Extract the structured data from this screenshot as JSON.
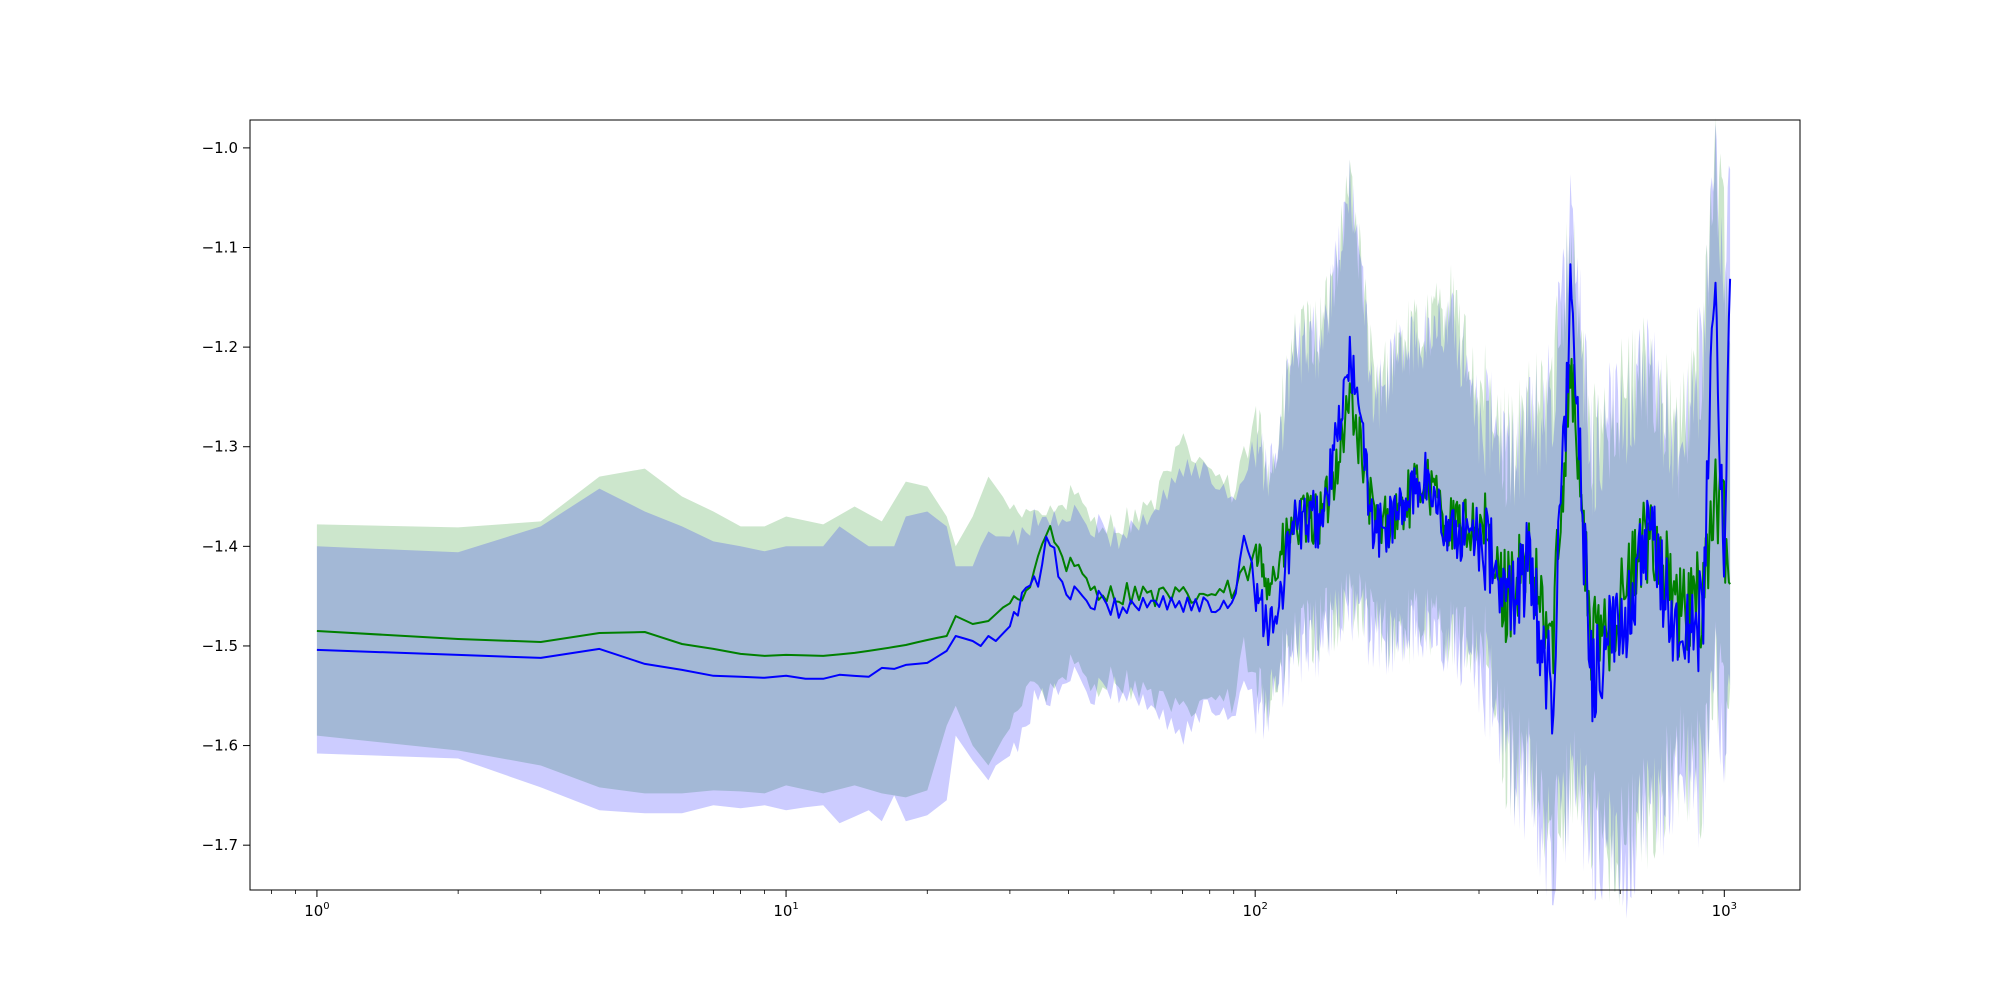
{
  "chart_data": {
    "type": "line",
    "title": "",
    "xlabel": "",
    "ylabel": "",
    "xscale": "log",
    "xlim": [
      0.72,
      1450
    ],
    "ylim": [
      -1.745,
      -0.972
    ],
    "grid": false,
    "legend": "none",
    "x_ticks": [
      {
        "base": "10",
        "exp": "0",
        "value": 1
      },
      {
        "base": "10",
        "exp": "1",
        "value": 10
      },
      {
        "base": "10",
        "exp": "2",
        "value": 100
      },
      {
        "base": "10",
        "exp": "3",
        "value": 1000
      }
    ],
    "y_ticks": [
      {
        "label": "−1.0",
        "value": -1.0
      },
      {
        "label": "−1.1",
        "value": -1.1
      },
      {
        "label": "−1.2",
        "value": -1.2
      },
      {
        "label": "−1.3",
        "value": -1.3
      },
      {
        "label": "−1.4",
        "value": -1.4
      },
      {
        "label": "−1.5",
        "value": -1.5
      },
      {
        "label": "−1.6",
        "value": -1.6
      },
      {
        "label": "−1.7",
        "value": -1.7
      }
    ],
    "series": [
      {
        "color": "#008000",
        "band_color": "#008000",
        "band_opacity": 0.2,
        "x": [
          1,
          2,
          3,
          4,
          5,
          6,
          7,
          8,
          9,
          10,
          12,
          14,
          16,
          18,
          20,
          22,
          23,
          25,
          27,
          30,
          33,
          36,
          40,
          45,
          50,
          55,
          60,
          70,
          80,
          90,
          95,
          100,
          110,
          120,
          140,
          160,
          180,
          200,
          230,
          260,
          300,
          340,
          380,
          430,
          470,
          520,
          600,
          700,
          800,
          900,
          950,
          1000,
          1030
        ],
        "y": [
          -1.485,
          -1.493,
          -1.496,
          -1.487,
          -1.486,
          -1.498,
          -1.503,
          -1.508,
          -1.51,
          -1.509,
          -1.51,
          -1.507,
          -1.503,
          -1.499,
          -1.494,
          -1.49,
          -1.47,
          -1.478,
          -1.475,
          -1.455,
          -1.44,
          -1.38,
          -1.42,
          -1.44,
          -1.45,
          -1.445,
          -1.45,
          -1.452,
          -1.448,
          -1.445,
          -1.43,
          -1.415,
          -1.43,
          -1.38,
          -1.37,
          -1.25,
          -1.38,
          -1.37,
          -1.33,
          -1.38,
          -1.38,
          -1.45,
          -1.42,
          -1.5,
          -1.2,
          -1.5,
          -1.46,
          -1.38,
          -1.47,
          -1.45,
          -1.35,
          -1.38,
          -1.44
        ],
        "upper": [
          -1.378,
          -1.381,
          -1.375,
          -1.33,
          -1.322,
          -1.35,
          -1.365,
          -1.38,
          -1.38,
          -1.37,
          -1.378,
          -1.36,
          -1.375,
          -1.335,
          -1.34,
          -1.37,
          -1.4,
          -1.37,
          -1.33,
          -1.36,
          -1.36,
          -1.37,
          -1.35,
          -1.37,
          -1.38,
          -1.37,
          -1.36,
          -1.3,
          -1.32,
          -1.35,
          -1.31,
          -1.28,
          -1.32,
          -1.2,
          -1.18,
          -1.03,
          -1.25,
          -1.2,
          -1.18,
          -1.15,
          -1.25,
          -1.3,
          -1.28,
          -1.24,
          -1.08,
          -1.3,
          -1.25,
          -1.22,
          -1.3,
          -1.2,
          -1.01,
          -1.1,
          -1.2
        ],
        "lower": [
          -1.59,
          -1.605,
          -1.62,
          -1.642,
          -1.648,
          -1.648,
          -1.645,
          -1.646,
          -1.648,
          -1.64,
          -1.648,
          -1.64,
          -1.648,
          -1.652,
          -1.645,
          -1.58,
          -1.56,
          -1.6,
          -1.62,
          -1.58,
          -1.53,
          -1.55,
          -1.52,
          -1.54,
          -1.53,
          -1.54,
          -1.55,
          -1.57,
          -1.55,
          -1.56,
          -1.5,
          -1.55,
          -1.54,
          -1.5,
          -1.48,
          -1.45,
          -1.48,
          -1.49,
          -1.47,
          -1.49,
          -1.5,
          -1.6,
          -1.63,
          -1.7,
          -1.62,
          -1.68,
          -1.7,
          -1.66,
          -1.62,
          -1.63,
          -1.52,
          -1.58,
          -1.54
        ]
      },
      {
        "color": "#0000ff",
        "band_color": "#0000ff",
        "band_opacity": 0.2,
        "x": [
          1,
          2,
          3,
          4,
          5,
          6,
          7,
          8,
          9,
          10,
          11,
          12,
          13,
          15,
          16,
          17,
          18,
          20,
          22,
          23,
          25,
          26,
          27,
          28,
          30,
          33,
          34,
          35,
          36,
          38,
          40,
          45,
          50,
          55,
          60,
          70,
          80,
          90,
          95,
          100,
          110,
          120,
          140,
          160,
          180,
          200,
          230,
          260,
          300,
          340,
          380,
          430,
          470,
          520,
          600,
          700,
          800,
          900,
          950,
          1000,
          1030
        ],
        "y": [
          -1.504,
          -1.509,
          -1.512,
          -1.503,
          -1.518,
          -1.524,
          -1.53,
          -1.531,
          -1.532,
          -1.53,
          -1.533,
          -1.533,
          -1.529,
          -1.531,
          -1.522,
          -1.523,
          -1.519,
          -1.517,
          -1.505,
          -1.49,
          -1.495,
          -1.5,
          -1.49,
          -1.495,
          -1.48,
          -1.43,
          -1.44,
          -1.425,
          -1.375,
          -1.43,
          -1.45,
          -1.455,
          -1.46,
          -1.46,
          -1.455,
          -1.458,
          -1.462,
          -1.455,
          -1.375,
          -1.44,
          -1.49,
          -1.38,
          -1.37,
          -1.21,
          -1.39,
          -1.37,
          -1.33,
          -1.39,
          -1.38,
          -1.46,
          -1.42,
          -1.55,
          -1.15,
          -1.53,
          -1.48,
          -1.39,
          -1.5,
          -1.47,
          -1.14,
          -1.4,
          -1.13
        ],
        "upper": [
          -1.4,
          -1.406,
          -1.38,
          -1.342,
          -1.365,
          -1.38,
          -1.395,
          -1.4,
          -1.405,
          -1.4,
          -1.4,
          -1.4,
          -1.38,
          -1.4,
          -1.4,
          -1.4,
          -1.37,
          -1.365,
          -1.38,
          -1.42,
          -1.42,
          -1.4,
          -1.385,
          -1.39,
          -1.39,
          -1.38,
          -1.37,
          -1.37,
          -1.37,
          -1.38,
          -1.37,
          -1.38,
          -1.39,
          -1.38,
          -1.37,
          -1.32,
          -1.33,
          -1.35,
          -1.32,
          -1.29,
          -1.33,
          -1.21,
          -1.19,
          -1.04,
          -1.26,
          -1.21,
          -1.19,
          -1.17,
          -1.26,
          -1.31,
          -1.29,
          -1.25,
          -1.07,
          -1.31,
          -1.26,
          -1.23,
          -1.31,
          -1.21,
          -1.02,
          -1.11,
          -1.03
        ],
        "lower": [
          -1.608,
          -1.613,
          -1.642,
          -1.665,
          -1.668,
          -1.668,
          -1.66,
          -1.663,
          -1.66,
          -1.665,
          -1.662,
          -1.66,
          -1.678,
          -1.665,
          -1.676,
          -1.65,
          -1.676,
          -1.67,
          -1.655,
          -1.59,
          -1.615,
          -1.625,
          -1.635,
          -1.62,
          -1.61,
          -1.57,
          -1.55,
          -1.54,
          -1.55,
          -1.55,
          -1.53,
          -1.55,
          -1.54,
          -1.55,
          -1.56,
          -1.59,
          -1.56,
          -1.57,
          -1.52,
          -1.56,
          -1.55,
          -1.51,
          -1.49,
          -1.46,
          -1.49,
          -1.5,
          -1.48,
          -1.5,
          -1.51,
          -1.61,
          -1.64,
          -1.71,
          -1.64,
          -1.69,
          -1.72,
          -1.67,
          -1.63,
          -1.64,
          -1.53,
          -1.59,
          -1.55
        ]
      }
    ]
  }
}
